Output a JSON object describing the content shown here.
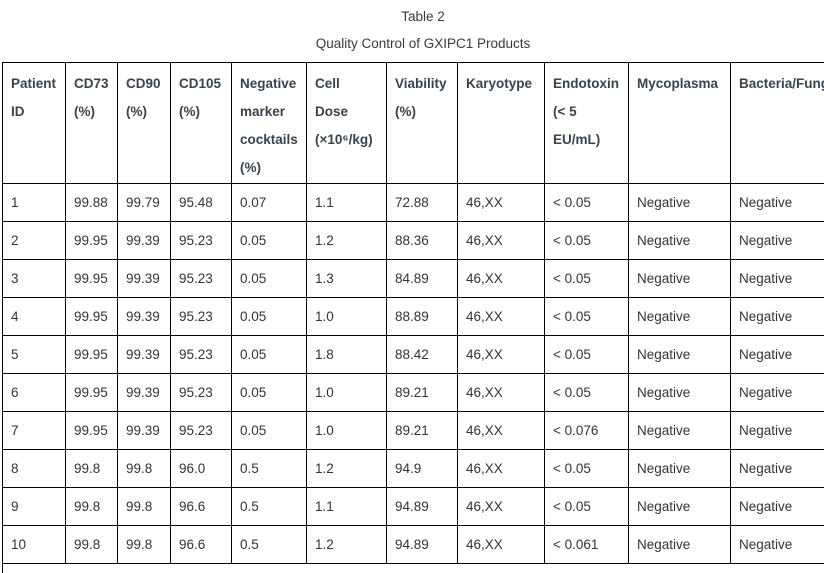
{
  "table": {
    "label": "Table 2",
    "caption": "Quality Control of GXIPC1 Products",
    "columns": [
      "Patient\nID",
      "CD73\n(%)",
      "CD90\n(%)",
      "CD105\n(%)",
      "Negative\nmarker\ncocktails\n(%)",
      "Cell\nDose\n(×10⁶/kg)",
      "Viability\n(%)",
      "Karyotype",
      "Endotoxin\n(< 5\nEU/mL)",
      "Mycoplasma",
      "Bacteria/Fungi"
    ],
    "rows": [
      [
        "1",
        "99.88",
        "99.79",
        "95.48",
        "0.07",
        "1.1",
        "72.88",
        "46,XX",
        "< 0.05",
        "Negative",
        "Negative"
      ],
      [
        "2",
        "99.95",
        "99.39",
        "95.23",
        "0.05",
        "1.2",
        "88.36",
        "46,XX",
        "< 0.05",
        "Negative",
        "Negative"
      ],
      [
        "3",
        "99.95",
        "99.39",
        "95.23",
        "0.05",
        "1.3",
        "84.89",
        "46,XX",
        "< 0.05",
        "Negative",
        "Negative"
      ],
      [
        "4",
        "99.95",
        "99.39",
        "95.23",
        "0.05",
        "1.0",
        "88.89",
        "46,XX",
        "< 0.05",
        "Negative",
        "Negative"
      ],
      [
        "5",
        "99.95",
        "99.39",
        "95.23",
        "0.05",
        "1.8",
        "88.42",
        "46,XX",
        "< 0.05",
        "Negative",
        "Negative"
      ],
      [
        "6",
        "99.95",
        "99.39",
        "95.23",
        "0.05",
        "1.0",
        "89.21",
        "46,XX",
        "< 0.05",
        "Negative",
        "Negative"
      ],
      [
        "7",
        "99.95",
        "99.39",
        "95.23",
        "0.05",
        "1.0",
        "89.21",
        "46,XX",
        "< 0.076",
        "Negative",
        "Negative"
      ],
      [
        "8",
        "99.8",
        "99.8",
        "96.0",
        "0.5",
        "1.2",
        "94.9",
        "46,XX",
        "< 0.05",
        "Negative",
        "Negative"
      ],
      [
        "9",
        "99.8",
        "99.8",
        "96.6",
        "0.5",
        "1.1",
        "94.89",
        "46,XX",
        "< 0.05",
        "Negative",
        "Negative"
      ],
      [
        "10",
        "99.8",
        "99.8",
        "96.6",
        "0.5",
        "1.2",
        "94.89",
        "46,XX",
        "< 0.061",
        "Negative",
        "Negative"
      ]
    ]
  },
  "colors": {
    "background": "#ffffff",
    "border": "#000000",
    "header_text": "#39434c",
    "body_text": "#2f353a",
    "title_text": "#3a3a3a"
  }
}
